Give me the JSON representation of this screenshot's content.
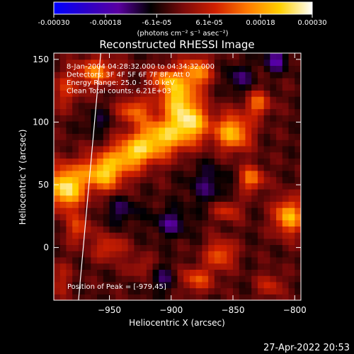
{
  "colorbar": {
    "tick_labels": [
      "-0.00030",
      "-0.00018",
      "-6.1e-05",
      "6.1e-05",
      "0.00018",
      "0.00030"
    ],
    "tick_values": [
      -0.0003,
      -0.00018,
      -6.1e-05,
      6.1e-05,
      0.00018,
      0.0003
    ],
    "range": [
      -0.0003,
      0.0003
    ],
    "unit_label": "(photons cm⁻² s⁻¹ asec⁻²)",
    "colormap": [
      "#0000ff",
      "#2c00c8",
      "#5a00a0",
      "#000000",
      "#7a0a0a",
      "#d02000",
      "#ff7a00",
      "#ffd000",
      "#ffffff"
    ]
  },
  "chart_data": {
    "type": "heatmap",
    "title": "Reconstructed RHESSI Image",
    "xlabel": "Heliocentric X (arcsec)",
    "ylabel": "Heliocentric Y (arcsec)",
    "xlim": [
      -995,
      -795
    ],
    "ylim": [
      -42,
      155
    ],
    "xticks": [
      -950,
      -900,
      -850,
      -800
    ],
    "xtick_labels": [
      "−950",
      "−900",
      "−850",
      "−800"
    ],
    "yticks": [
      0,
      50,
      100,
      150
    ],
    "ytick_labels": [
      "0",
      "50",
      "100",
      "150"
    ],
    "grid": false,
    "limb_line": [
      [
        -975,
        -42
      ],
      [
        -957,
        155
      ]
    ],
    "peak": {
      "x": -979,
      "y": 45
    },
    "sources": [
      {
        "x": -985,
        "y": 48,
        "sx": 10,
        "sy": 12,
        "amp": 0.0003
      },
      {
        "x": -955,
        "y": 60,
        "sx": 12,
        "sy": 10,
        "amp": 0.00026
      },
      {
        "x": -932,
        "y": 75,
        "sx": 12,
        "sy": 9,
        "amp": 0.00022
      },
      {
        "x": -910,
        "y": 88,
        "sx": 14,
        "sy": 11,
        "amp": 0.00024
      },
      {
        "x": -885,
        "y": 100,
        "sx": 11,
        "sy": 11,
        "amp": 0.00026
      },
      {
        "x": -895,
        "y": 120,
        "sx": 10,
        "sy": 10,
        "amp": 0.00022
      },
      {
        "x": -880,
        "y": 140,
        "sx": 9,
        "sy": 9,
        "amp": 0.0002
      },
      {
        "x": -960,
        "y": 140,
        "sx": 12,
        "sy": 8,
        "amp": 0.00018
      },
      {
        "x": -905,
        "y": 135,
        "sx": 9,
        "sy": 7,
        "amp": 0.00016
      },
      {
        "x": -930,
        "y": 110,
        "sx": 9,
        "sy": 7,
        "amp": 0.00016
      },
      {
        "x": -850,
        "y": 92,
        "sx": 10,
        "sy": 10,
        "amp": 0.00024
      },
      {
        "x": -835,
        "y": 55,
        "sx": 7,
        "sy": 7,
        "amp": 0.00018
      },
      {
        "x": -830,
        "y": 115,
        "sx": 7,
        "sy": 7,
        "amp": 0.00016
      },
      {
        "x": -805,
        "y": 25,
        "sx": 8,
        "sy": 10,
        "amp": 0.00024
      },
      {
        "x": -855,
        "y": 30,
        "sx": 8,
        "sy": 6,
        "amp": 0.00012
      },
      {
        "x": -860,
        "y": -5,
        "sx": 8,
        "sy": 8,
        "amp": 0.00016
      },
      {
        "x": -880,
        "y": -25,
        "sx": 10,
        "sy": 7,
        "amp": 0.00014
      },
      {
        "x": -950,
        "y": 0,
        "sx": 9,
        "sy": 7,
        "amp": 0.00012
      },
      {
        "x": -925,
        "y": -15,
        "sx": 7,
        "sy": 6,
        "amp": 8e-05
      },
      {
        "x": -975,
        "y": 15,
        "sx": 7,
        "sy": 8,
        "amp": 0.00012
      },
      {
        "x": -985,
        "y": 125,
        "sx": 8,
        "sy": 10,
        "amp": 0.0001
      },
      {
        "x": -990,
        "y": -25,
        "sx": 6,
        "sy": 10,
        "amp": 8e-05
      },
      {
        "x": -820,
        "y": -30,
        "sx": 7,
        "sy": 7,
        "amp": 0.0001
      },
      {
        "x": -815,
        "y": 150,
        "sx": 7,
        "sy": 7,
        "amp": -0.00012
      },
      {
        "x": -870,
        "y": 50,
        "sx": 12,
        "sy": 12,
        "amp": -8e-05
      },
      {
        "x": -940,
        "y": 30,
        "sx": 10,
        "sy": 8,
        "amp": -8e-05
      },
      {
        "x": -900,
        "y": 20,
        "sx": 10,
        "sy": 8,
        "amp": -0.0001
      },
      {
        "x": -905,
        "y": -25,
        "sx": 9,
        "sy": 8,
        "amp": -8e-05
      },
      {
        "x": -845,
        "y": 135,
        "sx": 8,
        "sy": 8,
        "amp": -9e-05
      },
      {
        "x": -960,
        "y": 100,
        "sx": 8,
        "sy": 8,
        "amp": -6e-05
      }
    ],
    "background": -3e-05,
    "annotations": [
      "8-Jan-2004 04:28:32.000 to 04:34:32.000",
      "Detectors: 3F 4F 5F 6F 7F 8F, Att 0",
      "Energy Range: 25.0 - 50.0 keV",
      "Clean      Total counts: 6.21E+03"
    ],
    "peak_label": "Position of Peak = [-979,45]"
  },
  "footer": {
    "timestamp": "27-Apr-2022 20:53"
  }
}
